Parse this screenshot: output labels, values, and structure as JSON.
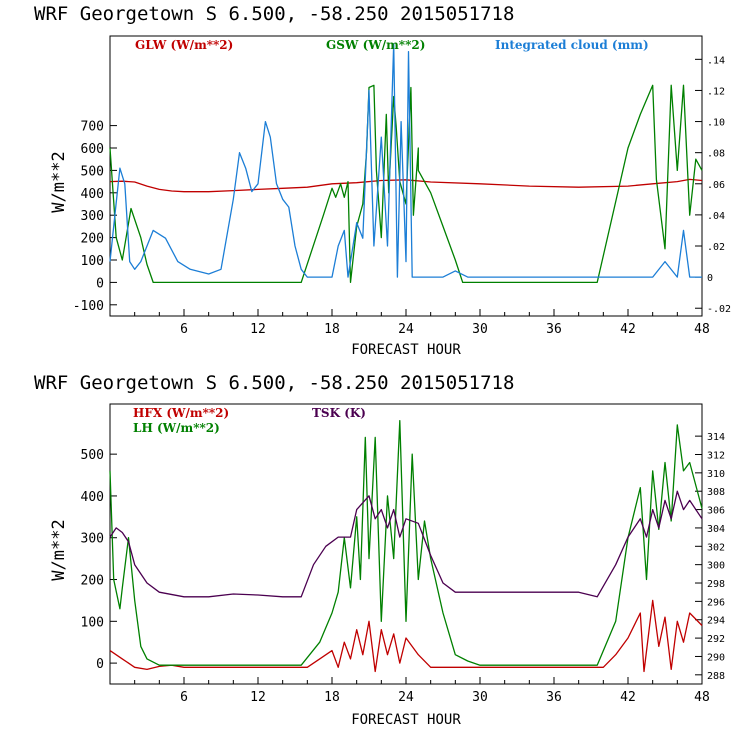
{
  "colors": {
    "red": "#c00000",
    "green": "#008000",
    "blue": "#1c7ed6",
    "purple": "#4b0050"
  },
  "chart_data": [
    {
      "type": "line",
      "title": "WRF   Georgetown S   6.500, -58.250  2015051718",
      "xlabel": "FORECAST HOUR",
      "ylabel": "W/m**2",
      "xlim": [
        0,
        48
      ],
      "ylim": [
        -150,
        1100
      ],
      "xticks": [
        "6",
        "12",
        "18",
        "24",
        "30",
        "36",
        "42",
        "48"
      ],
      "yticks": [
        "-100",
        "0",
        "100",
        "200",
        "300",
        "400",
        "500",
        "600",
        "700"
      ],
      "y2lim": [
        -0.025,
        0.155
      ],
      "y2ticks": [
        "-.02",
        "0",
        ".02",
        ".04",
        ".06",
        ".08",
        ".10",
        ".12",
        ".14"
      ],
      "series": [
        {
          "name": "GLW (W/m**2)",
          "color": "red",
          "axis": "left",
          "points": [
            [
              0,
              450
            ],
            [
              1,
              452
            ],
            [
              2,
              448
            ],
            [
              3,
              430
            ],
            [
              4,
              415
            ],
            [
              5,
              408
            ],
            [
              6,
              405
            ],
            [
              8,
              405
            ],
            [
              10,
              410
            ],
            [
              12,
              415
            ],
            [
              14,
              420
            ],
            [
              16,
              425
            ],
            [
              18,
              440
            ],
            [
              20,
              445
            ],
            [
              22,
              455
            ],
            [
              24,
              458
            ],
            [
              26,
              448
            ],
            [
              30,
              440
            ],
            [
              34,
              430
            ],
            [
              38,
              425
            ],
            [
              42,
              430
            ],
            [
              44,
              440
            ],
            [
              46,
              450
            ],
            [
              47,
              460
            ],
            [
              48,
              455
            ]
          ]
        },
        {
          "name": "GSW (W/m**2)",
          "color": "green",
          "axis": "left",
          "points": [
            [
              0,
              600
            ],
            [
              0.5,
              200
            ],
            [
              1,
              100
            ],
            [
              1.7,
              330
            ],
            [
              2.5,
              200
            ],
            [
              3,
              80
            ],
            [
              3.5,
              0
            ],
            [
              15.5,
              0
            ],
            [
              17.3,
              300
            ],
            [
              18,
              420
            ],
            [
              18.3,
              380
            ],
            [
              18.7,
              440
            ],
            [
              19,
              380
            ],
            [
              19.3,
              450
            ],
            [
              19.5,
              0
            ],
            [
              20,
              250
            ],
            [
              20.5,
              350
            ],
            [
              20.8,
              580
            ],
            [
              21,
              870
            ],
            [
              21.4,
              880
            ],
            [
              21.6,
              500
            ],
            [
              22,
              200
            ],
            [
              22.4,
              750
            ],
            [
              22.6,
              400
            ],
            [
              23,
              830
            ],
            [
              23.2,
              700
            ],
            [
              23.5,
              450
            ],
            [
              24,
              350
            ],
            [
              24.4,
              870
            ],
            [
              24.6,
              300
            ],
            [
              25,
              600
            ],
            [
              25,
              500
            ],
            [
              26,
              400
            ],
            [
              27,
              250
            ],
            [
              28,
              100
            ],
            [
              28.6,
              0
            ],
            [
              39.5,
              0
            ],
            [
              42,
              600
            ],
            [
              43,
              750
            ],
            [
              44,
              880
            ],
            [
              44.3,
              460
            ],
            [
              45,
              150
            ],
            [
              45.5,
              880
            ],
            [
              46,
              500
            ],
            [
              46.5,
              880
            ],
            [
              47,
              300
            ],
            [
              47.5,
              550
            ],
            [
              48,
              500
            ]
          ]
        },
        {
          "name": "Integrated cloud (mm)",
          "color": "blue",
          "axis": "right",
          "points": [
            [
              0,
              0.01
            ],
            [
              0.4,
              0.04
            ],
            [
              0.8,
              0.07
            ],
            [
              1.2,
              0.06
            ],
            [
              1.6,
              0.01
            ],
            [
              2,
              0.005
            ],
            [
              2.5,
              0.01
            ],
            [
              3.5,
              0.03
            ],
            [
              4.5,
              0.025
            ],
            [
              5.5,
              0.01
            ],
            [
              6.5,
              0.005
            ],
            [
              8,
              0.002
            ],
            [
              9,
              0.005
            ],
            [
              10,
              0.05
            ],
            [
              10.5,
              0.08
            ],
            [
              11,
              0.07
            ],
            [
              11.5,
              0.055
            ],
            [
              12,
              0.06
            ],
            [
              12.6,
              0.1
            ],
            [
              13,
              0.09
            ],
            [
              13.5,
              0.06
            ],
            [
              14,
              0.05
            ],
            [
              14.5,
              0.045
            ],
            [
              15,
              0.02
            ],
            [
              15.5,
              0.005
            ],
            [
              16,
              0.0
            ],
            [
              18,
              0.0
            ],
            [
              18.5,
              0.02
            ],
            [
              19,
              0.03
            ],
            [
              19.3,
              0.0
            ],
            [
              20,
              0.035
            ],
            [
              20.5,
              0.025
            ],
            [
              21,
              0.12
            ],
            [
              21.4,
              0.02
            ],
            [
              22,
              0.09
            ],
            [
              22.5,
              0.02
            ],
            [
              23,
              0.15
            ],
            [
              23.3,
              0.0
            ],
            [
              23.6,
              0.1
            ],
            [
              24,
              0.01
            ],
            [
              24.2,
              0.145
            ],
            [
              24.5,
              0.0
            ],
            [
              25,
              0.0
            ],
            [
              27,
              0.0
            ],
            [
              28,
              0.004
            ],
            [
              29,
              0.0
            ],
            [
              44,
              0.0
            ],
            [
              45,
              0.01
            ],
            [
              46,
              0.0
            ],
            [
              46.5,
              0.03
            ],
            [
              47,
              0.0
            ],
            [
              48,
              0.0
            ]
          ]
        }
      ]
    },
    {
      "type": "line",
      "title": "WRF   Georgetown S   6.500, -58.250  2015051718",
      "xlabel": "FORECAST HOUR",
      "ylabel": "W/m**2",
      "xlim": [
        0,
        48
      ],
      "ylim": [
        -50,
        620
      ],
      "xticks": [
        "6",
        "12",
        "18",
        "24",
        "30",
        "36",
        "42",
        "48"
      ],
      "yticks": [
        "0",
        "100",
        "200",
        "300",
        "400",
        "500"
      ],
      "y2lim": [
        287.0,
        317.5
      ],
      "y2ticks": [
        "288",
        "290",
        "292",
        "294",
        "296",
        "298",
        "300",
        "302",
        "304",
        "306",
        "308",
        "310",
        "312",
        "314"
      ],
      "series": [
        {
          "name": "HFX (W/m**2)",
          "color": "red",
          "axis": "left",
          "points": [
            [
              0,
              30
            ],
            [
              1,
              10
            ],
            [
              2,
              -10
            ],
            [
              3,
              -15
            ],
            [
              4,
              -8
            ],
            [
              5,
              -5
            ],
            [
              6,
              -10
            ],
            [
              10,
              -10
            ],
            [
              14,
              -10
            ],
            [
              16,
              -10
            ],
            [
              17,
              10
            ],
            [
              18,
              30
            ],
            [
              18.5,
              -10
            ],
            [
              19,
              50
            ],
            [
              19.5,
              10
            ],
            [
              20,
              80
            ],
            [
              20.5,
              20
            ],
            [
              21,
              100
            ],
            [
              21.5,
              -20
            ],
            [
              22,
              80
            ],
            [
              22.5,
              20
            ],
            [
              23,
              70
            ],
            [
              23.5,
              0
            ],
            [
              24,
              60
            ],
            [
              25,
              20
            ],
            [
              26,
              -10
            ],
            [
              30,
              -10
            ],
            [
              36,
              -10
            ],
            [
              40,
              -10
            ],
            [
              41,
              20
            ],
            [
              42,
              60
            ],
            [
              43,
              120
            ],
            [
              43.3,
              -20
            ],
            [
              44,
              150
            ],
            [
              44.5,
              40
            ],
            [
              45,
              110
            ],
            [
              45.5,
              -15
            ],
            [
              46,
              100
            ],
            [
              46.5,
              50
            ],
            [
              47,
              120
            ],
            [
              48,
              90
            ]
          ]
        },
        {
          "name": "LH  (W/m**2)",
          "color": "green",
          "axis": "left",
          "points": [
            [
              0,
              460
            ],
            [
              0.3,
              200
            ],
            [
              0.8,
              130
            ],
            [
              1,
              180
            ],
            [
              1.5,
              300
            ],
            [
              2,
              150
            ],
            [
              2.5,
              40
            ],
            [
              3,
              10
            ],
            [
              4,
              -5
            ],
            [
              10,
              -5
            ],
            [
              15.5,
              -5
            ],
            [
              17,
              50
            ],
            [
              18,
              120
            ],
            [
              18.5,
              170
            ],
            [
              19,
              300
            ],
            [
              19.5,
              180
            ],
            [
              20,
              350
            ],
            [
              20.3,
              200
            ],
            [
              20.7,
              540
            ],
            [
              21,
              250
            ],
            [
              21.5,
              540
            ],
            [
              22,
              100
            ],
            [
              22.5,
              400
            ],
            [
              23,
              250
            ],
            [
              23.5,
              580
            ],
            [
              24,
              100
            ],
            [
              24.5,
              500
            ],
            [
              25,
              200
            ],
            [
              25.5,
              340
            ],
            [
              26,
              250
            ],
            [
              27,
              120
            ],
            [
              28,
              20
            ],
            [
              29,
              5
            ],
            [
              30,
              -5
            ],
            [
              39.5,
              -5
            ],
            [
              41,
              100
            ],
            [
              42,
              300
            ],
            [
              43,
              420
            ],
            [
              43.5,
              200
            ],
            [
              44,
              460
            ],
            [
              44.5,
              320
            ],
            [
              45,
              480
            ],
            [
              45.5,
              340
            ],
            [
              46,
              570
            ],
            [
              46.5,
              460
            ],
            [
              47,
              480
            ],
            [
              48,
              370
            ]
          ]
        },
        {
          "name": "TSK (K)",
          "color": "purple",
          "axis": "right",
          "points": [
            [
              0,
              303
            ],
            [
              0.5,
              304
            ],
            [
              1,
              303.5
            ],
            [
              1.5,
              302.5
            ],
            [
              2,
              300
            ],
            [
              3,
              298
            ],
            [
              4,
              297
            ],
            [
              6,
              296.5
            ],
            [
              8,
              296.5
            ],
            [
              10,
              296.8
            ],
            [
              12,
              296.7
            ],
            [
              14,
              296.5
            ],
            [
              15.5,
              296.5
            ],
            [
              16.5,
              300
            ],
            [
              17.5,
              302
            ],
            [
              18.5,
              303
            ],
            [
              19.5,
              303
            ],
            [
              20,
              306
            ],
            [
              21,
              307.5
            ],
            [
              21.5,
              305
            ],
            [
              22,
              306
            ],
            [
              22.5,
              304
            ],
            [
              23,
              306
            ],
            [
              23.5,
              303
            ],
            [
              24,
              305
            ],
            [
              25,
              304.5
            ],
            [
              26,
              301
            ],
            [
              27,
              298
            ],
            [
              28,
              297
            ],
            [
              30,
              297
            ],
            [
              34,
              297
            ],
            [
              38,
              297
            ],
            [
              39.5,
              296.5
            ],
            [
              41,
              300
            ],
            [
              42,
              303
            ],
            [
              43,
              305
            ],
            [
              43.5,
              303
            ],
            [
              44,
              306
            ],
            [
              44.5,
              304
            ],
            [
              45,
              307
            ],
            [
              45.5,
              305
            ],
            [
              46,
              308
            ],
            [
              46.5,
              306
            ],
            [
              47,
              307
            ],
            [
              48,
              305
            ]
          ]
        }
      ]
    }
  ]
}
